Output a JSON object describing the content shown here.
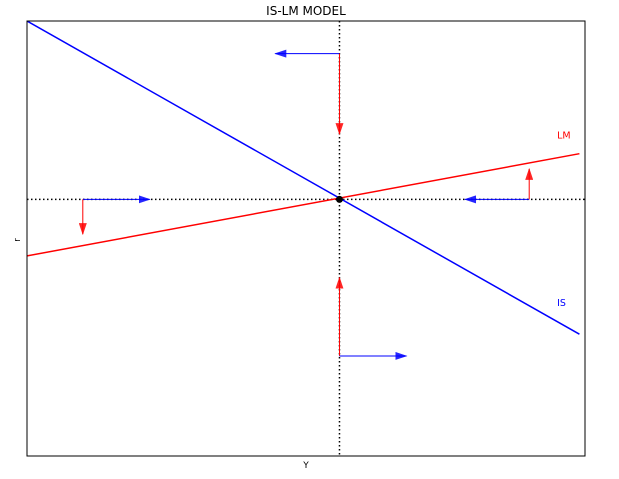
{
  "chart_data": {
    "type": "line",
    "title": "IS-LM MODEL",
    "xlabel": "Y",
    "ylabel": "r",
    "xlim": [
      0,
      10
    ],
    "ylim": [
      0,
      10
    ],
    "grid": false,
    "ticks": false,
    "equilibrium": {
      "x": 5.6,
      "y": 5.9,
      "color": "#000000"
    },
    "guides": {
      "style": "dotted",
      "color": "#000000",
      "vertical_x": 5.6,
      "horizontal_y": 5.9
    },
    "series": [
      {
        "name": "IS",
        "color": "#0000ff",
        "x": [
          0,
          9.9
        ],
        "y": [
          10,
          2.8
        ]
      },
      {
        "name": "LM",
        "color": "#ff0000",
        "x": [
          0,
          9.9
        ],
        "y": [
          4.6,
          6.95
        ]
      }
    ],
    "curve_labels": [
      {
        "text": "LM",
        "color": "#ff0000",
        "x": 9.5,
        "y": 7.3
      },
      {
        "text": "IS",
        "color": "#0000ff",
        "x": 9.5,
        "y": 3.45
      }
    ],
    "arrows": [
      {
        "color": "#0000ff",
        "from": [
          5.6,
          9.25
        ],
        "to": [
          4.45,
          9.25
        ]
      },
      {
        "color": "#ff0000",
        "from": [
          5.6,
          9.25
        ],
        "to": [
          5.6,
          7.4
        ]
      },
      {
        "color": "#0000ff",
        "from": [
          1.0,
          5.9
        ],
        "to": [
          2.2,
          5.9
        ]
      },
      {
        "color": "#ff0000",
        "from": [
          1.0,
          5.9
        ],
        "to": [
          1.0,
          5.1
        ]
      },
      {
        "color": "#0000ff",
        "from": [
          9.0,
          5.9
        ],
        "to": [
          7.85,
          5.9
        ]
      },
      {
        "color": "#ff0000",
        "from": [
          9.0,
          5.9
        ],
        "to": [
          9.0,
          6.6
        ]
      },
      {
        "color": "#ff0000",
        "from": [
          5.6,
          2.3
        ],
        "to": [
          5.6,
          4.1
        ]
      },
      {
        "color": "#0000ff",
        "from": [
          5.6,
          2.3
        ],
        "to": [
          6.8,
          2.3
        ]
      }
    ]
  }
}
